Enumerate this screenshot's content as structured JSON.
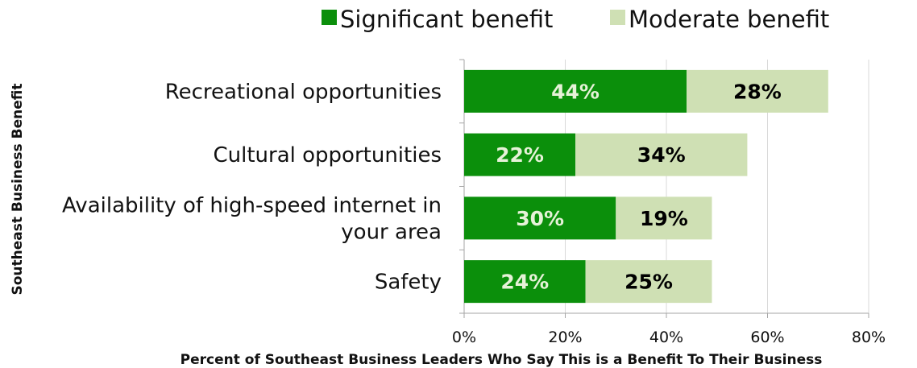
{
  "chart_data": {
    "type": "bar",
    "orientation": "horizontal",
    "stacked": true,
    "categories": [
      "Recreational opportunities",
      "Cultural opportunities",
      "Availability of high-speed internet in your area",
      "Safety"
    ],
    "category_lines": [
      [
        "Recreational opportunities"
      ],
      [
        "Cultural opportunities"
      ],
      [
        "Availability of high-speed internet in",
        "your area"
      ],
      [
        "Safety"
      ]
    ],
    "series": [
      {
        "name": "Significant benefit",
        "values": [
          44,
          22,
          30,
          24
        ],
        "labels": [
          "44%",
          "22%",
          "30%",
          "24%"
        ],
        "color": "#0b8f0b",
        "label_color": "#e6f2d8"
      },
      {
        "name": "Moderate benefit",
        "values": [
          28,
          34,
          19,
          25
        ],
        "labels": [
          "28%",
          "34%",
          "19%",
          "25%"
        ],
        "color": "#cfe0b4",
        "label_color": "#000000"
      }
    ],
    "xlim": [
      0,
      80
    ],
    "ticks": [
      0,
      20,
      40,
      60,
      80
    ],
    "tick_labels": [
      "0%",
      "20%",
      "40%",
      "60%",
      "80%"
    ],
    "xlabel": "Percent of Southeast Business Leaders Who Say This is a Benefit To Their Business",
    "ylabel": "Southeast Business Benefit",
    "grid": true,
    "legend_position": "top"
  }
}
